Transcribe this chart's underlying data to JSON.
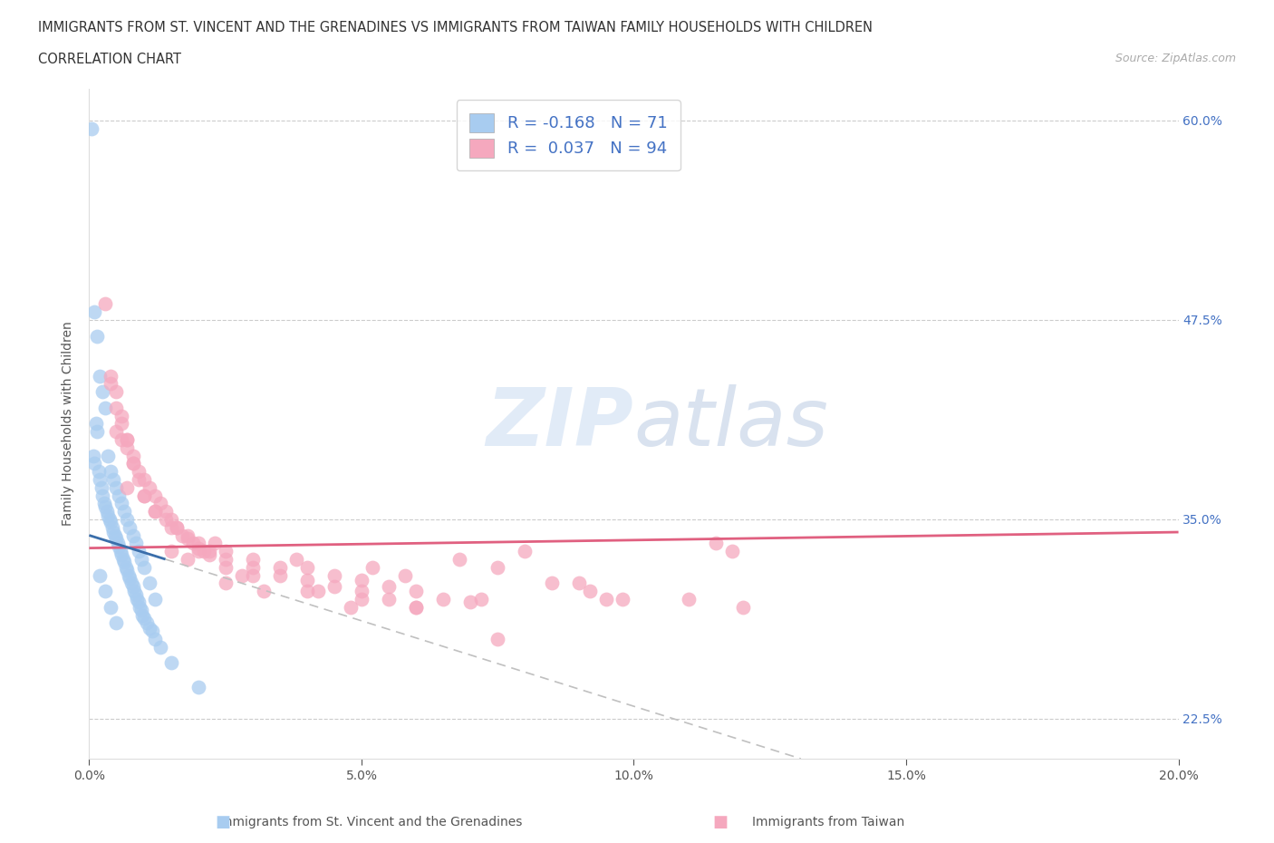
{
  "title_line1": "IMMIGRANTS FROM ST. VINCENT AND THE GRENADINES VS IMMIGRANTS FROM TAIWAN FAMILY HOUSEHOLDS WITH CHILDREN",
  "title_line2": "CORRELATION CHART",
  "source_text": "Source: ZipAtlas.com",
  "ylabel": "Family Households with Children",
  "xlim": [
    0.0,
    20.0
  ],
  "ylim": [
    20.0,
    62.0
  ],
  "xtick_vals": [
    0.0,
    5.0,
    10.0,
    15.0,
    20.0
  ],
  "ytick_vals": [
    22.5,
    35.0,
    47.5,
    60.0
  ],
  "ytick_labels": [
    "22.5%",
    "35.0%",
    "47.5%",
    "60.0%"
  ],
  "xtick_labels": [
    "0.0%",
    "5.0%",
    "10.0%",
    "15.0%",
    "20.0%"
  ],
  "watermark_text": "ZIPatlas",
  "color_blue": "#A8CCF0",
  "color_pink": "#F5A8BE",
  "color_blue_line": "#3A6EAA",
  "color_pink_line": "#E06080",
  "color_dashed": "#C0C0C0",
  "color_grid": "#CCCCCC",
  "r_blue": -0.168,
  "n_blue": 71,
  "r_pink": 0.037,
  "n_pink": 94,
  "blue_solid_end": 1.4,
  "legend_label1": "R = -0.168   N = 71",
  "legend_label2": "R =  0.037   N = 94",
  "bottom_label1": "Immigrants from St. Vincent and the Grenadines",
  "bottom_label2": "Immigrants from Taiwan",
  "blue_x": [
    0.05,
    0.08,
    0.1,
    0.12,
    0.15,
    0.18,
    0.2,
    0.22,
    0.25,
    0.28,
    0.3,
    0.32,
    0.35,
    0.38,
    0.4,
    0.42,
    0.45,
    0.48,
    0.5,
    0.52,
    0.55,
    0.58,
    0.6,
    0.62,
    0.65,
    0.68,
    0.7,
    0.72,
    0.75,
    0.78,
    0.8,
    0.82,
    0.85,
    0.88,
    0.9,
    0.92,
    0.95,
    0.98,
    1.0,
    1.05,
    1.1,
    1.15,
    1.2,
    1.3,
    1.5,
    2.0,
    0.1,
    0.15,
    0.2,
    0.25,
    0.3,
    0.35,
    0.4,
    0.45,
    0.5,
    0.55,
    0.6,
    0.65,
    0.7,
    0.75,
    0.8,
    0.85,
    0.9,
    0.95,
    1.0,
    1.1,
    1.2,
    0.2,
    0.3,
    0.4,
    0.5
  ],
  "blue_y": [
    59.5,
    39.0,
    38.5,
    41.0,
    40.5,
    38.0,
    37.5,
    37.0,
    36.5,
    36.0,
    35.8,
    35.5,
    35.2,
    35.0,
    34.8,
    34.5,
    34.2,
    34.0,
    33.8,
    33.5,
    33.3,
    33.0,
    32.8,
    32.5,
    32.3,
    32.0,
    31.8,
    31.5,
    31.3,
    31.0,
    30.8,
    30.5,
    30.3,
    30.0,
    29.8,
    29.5,
    29.3,
    29.0,
    28.8,
    28.5,
    28.2,
    28.0,
    27.5,
    27.0,
    26.0,
    24.5,
    48.0,
    46.5,
    44.0,
    43.0,
    42.0,
    39.0,
    38.0,
    37.5,
    37.0,
    36.5,
    36.0,
    35.5,
    35.0,
    34.5,
    34.0,
    33.5,
    33.0,
    32.5,
    32.0,
    31.0,
    30.0,
    31.5,
    30.5,
    29.5,
    28.5
  ],
  "pink_x": [
    0.3,
    0.4,
    0.5,
    0.6,
    0.7,
    0.8,
    0.9,
    1.0,
    1.1,
    1.2,
    1.3,
    1.4,
    1.5,
    1.6,
    1.7,
    1.8,
    1.9,
    2.0,
    2.1,
    2.2,
    2.5,
    3.0,
    3.5,
    4.0,
    4.5,
    5.0,
    5.5,
    6.0,
    6.5,
    7.0,
    7.5,
    8.0,
    9.0,
    9.5,
    11.5,
    0.5,
    0.6,
    0.7,
    0.8,
    0.9,
    1.0,
    1.2,
    1.4,
    1.6,
    1.8,
    2.0,
    2.2,
    2.5,
    3.0,
    3.5,
    4.0,
    4.5,
    5.0,
    5.5,
    6.0,
    0.4,
    0.5,
    0.6,
    0.7,
    0.8,
    1.0,
    1.2,
    1.5,
    2.0,
    2.5,
    3.0,
    4.0,
    5.0,
    6.0,
    7.5,
    1.8,
    2.5,
    3.2,
    4.8,
    5.8,
    7.2,
    9.2,
    11.0,
    12.0,
    2.3,
    3.8,
    5.2,
    6.8,
    8.5,
    9.8,
    11.8,
    0.7,
    1.5,
    2.8,
    4.2
  ],
  "pink_y": [
    48.5,
    43.5,
    42.0,
    41.0,
    40.0,
    39.0,
    38.0,
    37.5,
    37.0,
    36.5,
    36.0,
    35.5,
    35.0,
    34.5,
    34.0,
    33.8,
    33.5,
    33.2,
    33.0,
    32.8,
    33.0,
    32.5,
    32.0,
    32.0,
    31.5,
    31.2,
    30.8,
    30.5,
    30.0,
    29.8,
    32.0,
    33.0,
    31.0,
    30.0,
    33.5,
    40.5,
    40.0,
    39.5,
    38.5,
    37.5,
    36.5,
    35.5,
    35.0,
    34.5,
    34.0,
    33.5,
    33.0,
    32.5,
    32.0,
    31.5,
    31.2,
    30.8,
    30.5,
    30.0,
    29.5,
    44.0,
    43.0,
    41.5,
    40.0,
    38.5,
    36.5,
    35.5,
    34.5,
    33.0,
    32.0,
    31.5,
    30.5,
    30.0,
    29.5,
    27.5,
    32.5,
    31.0,
    30.5,
    29.5,
    31.5,
    30.0,
    30.5,
    30.0,
    29.5,
    33.5,
    32.5,
    32.0,
    32.5,
    31.0,
    30.0,
    33.0,
    37.0,
    33.0,
    31.5,
    30.5
  ]
}
